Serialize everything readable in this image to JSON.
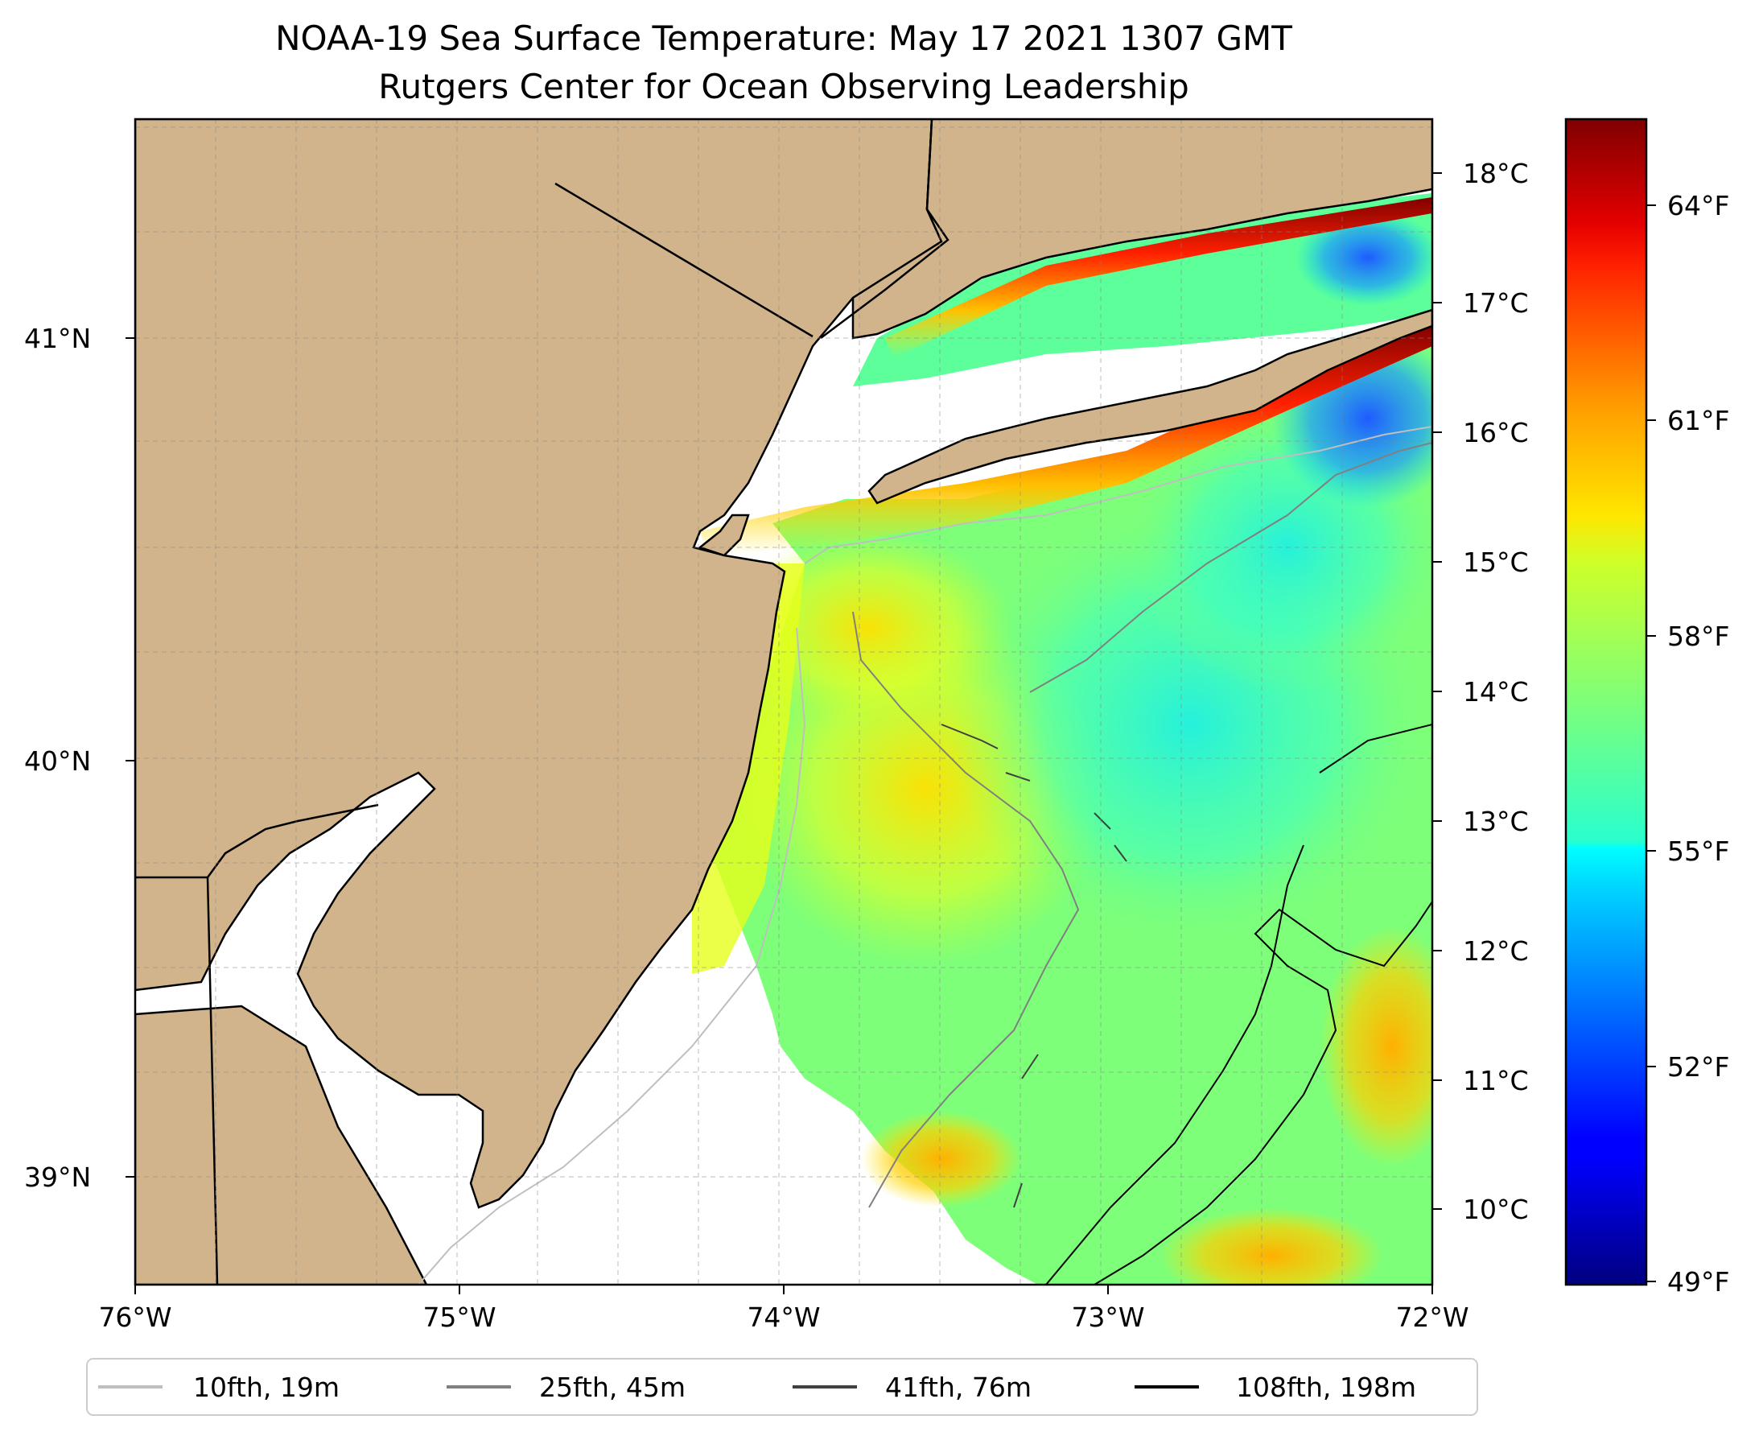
{
  "title": {
    "line1": "NOAA-19 Sea Surface Temperature: May 17 2021 1307 GMT",
    "line2": "Rutgers Center for Ocean Observing Leadership"
  },
  "map": {
    "lon_ticks": [
      {
        "value": -76,
        "label": "76°W"
      },
      {
        "value": -75,
        "label": "75°W"
      },
      {
        "value": -74,
        "label": "74°W"
      },
      {
        "value": -73,
        "label": "73°W"
      },
      {
        "value": -72,
        "label": "72°W"
      }
    ],
    "lat_ticks": [
      {
        "value": 41,
        "label": "41°N"
      },
      {
        "value": 40,
        "label": "40°N"
      },
      {
        "value": 39,
        "label": "39°N"
      }
    ],
    "land_color": "#D2B48C",
    "gridlines": true
  },
  "colorbar": {
    "colormap": "jet",
    "celsius_ticks": [
      {
        "value": 18,
        "label": "18°C"
      },
      {
        "value": 17,
        "label": "17°C"
      },
      {
        "value": 16,
        "label": "16°C"
      },
      {
        "value": 15,
        "label": "15°C"
      },
      {
        "value": 14,
        "label": "14°C"
      },
      {
        "value": 13,
        "label": "13°C"
      },
      {
        "value": 12,
        "label": "12°C"
      },
      {
        "value": 11,
        "label": "11°C"
      },
      {
        "value": 10,
        "label": "10°C"
      }
    ],
    "fahrenheit_ticks": [
      {
        "value": 64,
        "label": "64°F"
      },
      {
        "value": 61,
        "label": "61°F"
      },
      {
        "value": 58,
        "label": "58°F"
      },
      {
        "value": 55,
        "label": "55°F"
      },
      {
        "value": 52,
        "label": "52°F"
      },
      {
        "value": 49,
        "label": "49°F"
      }
    ]
  },
  "legend": {
    "placement": "bottom",
    "items": [
      {
        "label": "10fth, 19m",
        "color": "#bfbfbf"
      },
      {
        "label": "25fth, 45m",
        "color": "#808080"
      },
      {
        "label": "41fth, 76m",
        "color": "#404040"
      },
      {
        "label": "108fth, 198m",
        "color": "#000000"
      }
    ]
  }
}
